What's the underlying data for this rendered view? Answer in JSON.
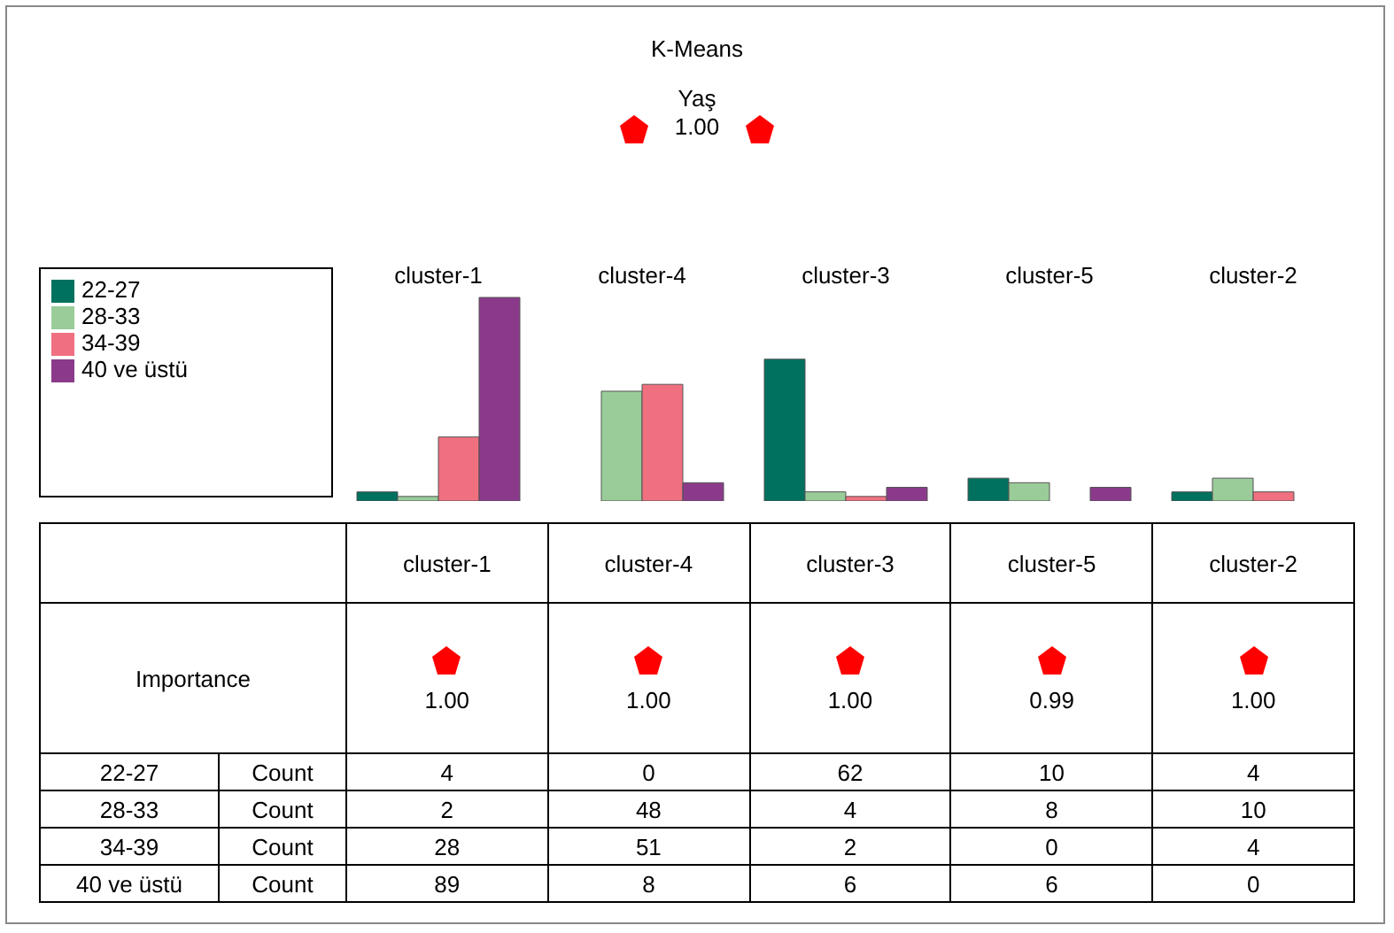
{
  "chart_data": {
    "type": "bar",
    "title": "K-Means",
    "subtitle": "Yaş",
    "categories": [
      "cluster-1",
      "cluster-4",
      "cluster-3",
      "cluster-5",
      "cluster-2"
    ],
    "series": [
      {
        "name": "22-27",
        "color": "#00705f",
        "values": [
          4,
          0,
          62,
          10,
          4
        ],
        "value_labels": [
          "4",
          "0",
          "62",
          "10",
          "4"
        ]
      },
      {
        "name": "28-33",
        "color": "#99cc99",
        "values": [
          2,
          48,
          4,
          8,
          10
        ],
        "value_labels": [
          "2",
          "48",
          "4",
          "8",
          "10"
        ]
      },
      {
        "name": "34-39",
        "color": "#f07080",
        "values": [
          28,
          51,
          2,
          0,
          4
        ],
        "value_labels": [
          "28",
          "51",
          "2",
          "0",
          "4"
        ]
      },
      {
        "name": "40 ve üstü",
        "color": "#8b3a8b",
        "values": [
          89,
          8,
          6,
          6,
          0
        ],
        "value_labels": [
          "89",
          "8",
          "6",
          "6",
          "0"
        ]
      }
    ],
    "legend": "left",
    "grid": false,
    "annotations": [
      "1.00",
      "Importance",
      "Count",
      "1.00",
      "1.00",
      "1.00",
      "0.99",
      "1.00"
    ]
  }
}
